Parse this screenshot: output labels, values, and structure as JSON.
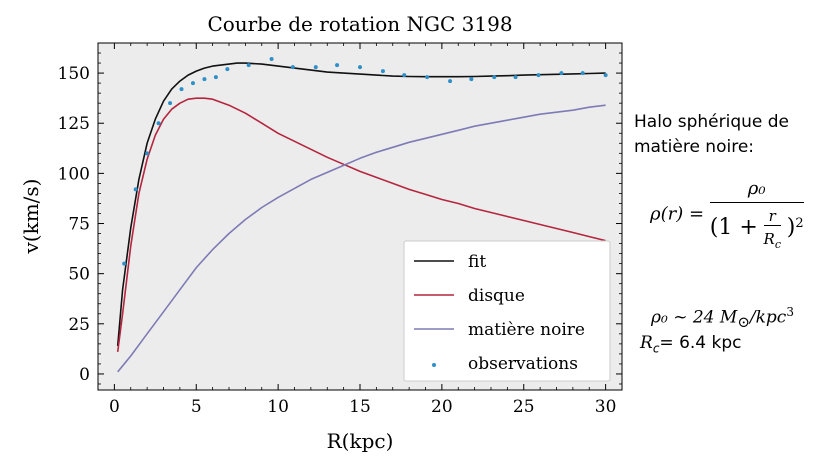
{
  "chart_data": {
    "type": "line",
    "title": "Courbe de rotation NGC 3198",
    "xlabel": "R(kpc)",
    "ylabel": "v(km/s)",
    "xlim": [
      -1,
      31
    ],
    "ylim": [
      -8,
      165
    ],
    "xticks": [
      0,
      5,
      10,
      15,
      20,
      25,
      30
    ],
    "yticks": [
      0,
      25,
      50,
      75,
      100,
      125,
      150
    ],
    "grid": false,
    "background": "#ececec",
    "legend_position": "lower-right",
    "series": [
      {
        "name": "fit",
        "color": "#111111",
        "x": [
          0.2,
          0.5,
          1.0,
          1.5,
          2.0,
          2.5,
          3.0,
          3.5,
          4.0,
          4.5,
          5.0,
          5.5,
          6.0,
          6.5,
          7.0,
          7.5,
          8.0,
          9.0,
          10.0,
          11.0,
          12.0,
          13.0,
          14.0,
          15.0,
          16.0,
          17.0,
          18.0,
          19.0,
          20.0,
          21.0,
          22.0,
          23.0,
          24.0,
          25.0,
          26.0,
          27.0,
          28.0,
          29.0,
          30.0
        ],
        "y": [
          14,
          42,
          73,
          97,
          115,
          127,
          136,
          142,
          146,
          149,
          151,
          152.5,
          153.5,
          154,
          154.5,
          155,
          155,
          154.5,
          153.5,
          152.5,
          151.5,
          150.5,
          150,
          149.5,
          149,
          148.5,
          148.3,
          148.2,
          148.2,
          148.2,
          148.3,
          148.5,
          148.7,
          149,
          149.2,
          149.4,
          149.6,
          149.8,
          150
        ]
      },
      {
        "name": "disque",
        "color": "#b5253f",
        "x": [
          0.2,
          0.5,
          1.0,
          1.5,
          2.0,
          2.5,
          3.0,
          3.5,
          4.0,
          4.5,
          5.0,
          5.5,
          6.0,
          7.0,
          8.0,
          9.0,
          10.0,
          11.0,
          12.0,
          13.0,
          14.0,
          15.0,
          16.0,
          17.0,
          18.0,
          19.0,
          20.0,
          21.0,
          22.0,
          23.0,
          24.0,
          25.0,
          26.0,
          27.0,
          28.0,
          29.0,
          30.0
        ],
        "y": [
          11,
          30,
          64,
          90,
          107,
          119,
          127,
          132,
          135,
          137,
          137.5,
          137.5,
          137,
          134,
          130,
          125,
          120,
          116,
          112,
          108,
          104.5,
          101,
          98,
          95,
          92,
          89.5,
          87,
          85,
          82.5,
          80.5,
          78.5,
          76.5,
          74.5,
          72.5,
          70.5,
          68.5,
          66.5
        ]
      },
      {
        "name": "matière noire",
        "color": "#7d7bb5",
        "x": [
          0.2,
          1.0,
          2.0,
          3.0,
          4.0,
          5.0,
          6.0,
          7.0,
          8.0,
          9.0,
          10.0,
          11.0,
          12.0,
          13.0,
          14.0,
          15.0,
          16.0,
          17.0,
          18.0,
          19.0,
          20.0,
          21.0,
          22.0,
          23.0,
          24.0,
          25.0,
          26.0,
          27.0,
          28.0,
          29.0,
          30.0
        ],
        "y": [
          1,
          9,
          20,
          31,
          42,
          53,
          62,
          70,
          77,
          83,
          88,
          92.5,
          97,
          100.5,
          104,
          107.5,
          110.5,
          113,
          115.5,
          117.5,
          119.5,
          121.5,
          123.5,
          125,
          126.5,
          128,
          129.5,
          130.5,
          131.5,
          133,
          134
        ]
      }
    ],
    "scatter": {
      "name": "observations",
      "color": "#2f8fc7",
      "x": [
        0.6,
        1.3,
        2.0,
        2.7,
        3.4,
        4.1,
        4.8,
        5.5,
        6.2,
        6.9,
        8.2,
        9.6,
        10.9,
        12.3,
        13.6,
        15.0,
        16.4,
        17.7,
        19.1,
        20.5,
        21.8,
        23.2,
        24.5,
        25.9,
        27.3,
        28.6,
        30.0
      ],
      "y": [
        55,
        92,
        110,
        125,
        135,
        142,
        145,
        147,
        148,
        152,
        154,
        157,
        153,
        153,
        154,
        153,
        151,
        149,
        148,
        146,
        147,
        148,
        148,
        149,
        150,
        150,
        149
      ]
    }
  },
  "side_panel": {
    "title_line1": "Halo sphérique de",
    "title_line2": "matière noire:",
    "formula_lhs": "ρ(r) =",
    "formula_num": "ρ₀",
    "formula_den_left": "(1 +",
    "formula_den_r": "r",
    "formula_den_rc": "R",
    "formula_den_rc_sub": "c",
    "formula_den_right": ")",
    "formula_exp": "2",
    "rho0_label": "ρ₀ ~ 24 M",
    "rho0_sun": "⊙",
    "rho0_unit": "/kpc",
    "rho0_exp": "3",
    "rc_label": "R",
    "rc_sub": "c",
    "rc_value": "= 6.4 kpc"
  }
}
